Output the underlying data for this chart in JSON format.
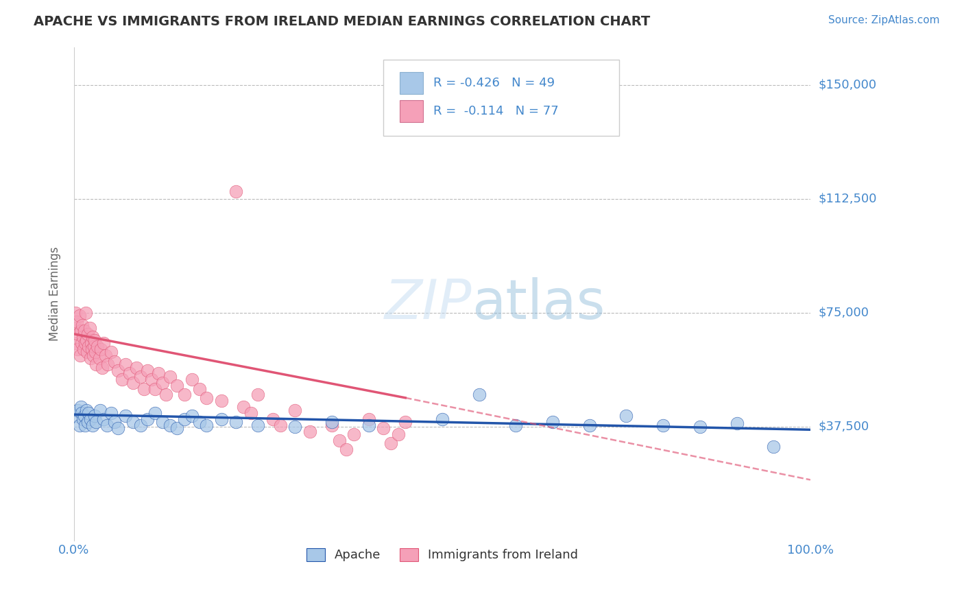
{
  "title": "APACHE VS IMMIGRANTS FROM IRELAND MEDIAN EARNINGS CORRELATION CHART",
  "source": "Source: ZipAtlas.com",
  "ylabel": "Median Earnings",
  "xlim": [
    0.0,
    100.0
  ],
  "ylim": [
    0,
    162500
  ],
  "yticks": [
    37500,
    75000,
    112500,
    150000
  ],
  "ytick_labels": [
    "$37,500",
    "$75,000",
    "$112,500",
    "$150,000"
  ],
  "xtick_labels": [
    "0.0%",
    "100.0%"
  ],
  "background_color": "#ffffff",
  "grid_color": "#bbbbbb",
  "title_color": "#333333",
  "axis_color": "#4488cc",
  "apache_color": "#a8c8e8",
  "apache_line_color": "#2255aa",
  "ireland_color": "#f5a0b8",
  "ireland_line_color": "#e05575",
  "apache_R": "R = -0.426",
  "apache_N": "N = 49",
  "ireland_R": "R =  -0.114",
  "ireland_N": "N = 77",
  "apache_label": "Apache",
  "ireland_label": "Immigrants from Ireland",
  "apache_x": [
    0.3,
    0.5,
    0.7,
    0.9,
    1.0,
    1.2,
    1.4,
    1.5,
    1.7,
    1.9,
    2.0,
    2.2,
    2.5,
    2.8,
    3.0,
    3.5,
    4.0,
    4.5,
    5.0,
    5.5,
    6.0,
    7.0,
    8.0,
    9.0,
    10.0,
    11.0,
    12.0,
    13.0,
    14.0,
    15.0,
    16.0,
    17.0,
    18.0,
    20.0,
    22.0,
    25.0,
    30.0,
    35.0,
    40.0,
    50.0,
    55.0,
    60.0,
    65.0,
    70.0,
    75.0,
    80.0,
    85.0,
    90.0,
    95.0
  ],
  "apache_y": [
    41000,
    43000,
    38000,
    44000,
    42000,
    40000,
    41000,
    38000,
    43000,
    39000,
    42000,
    40000,
    38000,
    41000,
    39000,
    43000,
    40000,
    38000,
    42000,
    39000,
    37000,
    41000,
    39000,
    38000,
    40000,
    42000,
    39000,
    38000,
    37000,
    40000,
    41000,
    39000,
    38000,
    40000,
    39000,
    38000,
    37500,
    39000,
    38000,
    40000,
    48000,
    38000,
    39000,
    38000,
    41000,
    38000,
    37500,
    38500,
    31000
  ],
  "ireland_x": [
    0.1,
    0.2,
    0.3,
    0.4,
    0.5,
    0.6,
    0.7,
    0.8,
    0.9,
    1.0,
    1.1,
    1.2,
    1.3,
    1.4,
    1.5,
    1.6,
    1.7,
    1.8,
    1.9,
    2.0,
    2.1,
    2.2,
    2.3,
    2.4,
    2.5,
    2.6,
    2.7,
    2.8,
    2.9,
    3.0,
    3.2,
    3.4,
    3.6,
    3.8,
    4.0,
    4.3,
    4.6,
    5.0,
    5.5,
    6.0,
    6.5,
    7.0,
    7.5,
    8.0,
    8.5,
    9.0,
    9.5,
    10.0,
    10.5,
    11.0,
    11.5,
    12.0,
    12.5,
    13.0,
    14.0,
    15.0,
    16.0,
    17.0,
    18.0,
    20.0,
    22.0,
    23.0,
    24.0,
    25.0,
    27.0,
    28.0,
    30.0,
    32.0,
    35.0,
    36.0,
    37.0,
    38.0,
    40.0,
    42.0,
    43.0,
    44.0,
    45.0
  ],
  "ireland_y": [
    65000,
    75000,
    70000,
    72000,
    63000,
    68000,
    74000,
    61000,
    69000,
    65000,
    71000,
    67000,
    63000,
    69000,
    65000,
    75000,
    66000,
    62000,
    68000,
    64000,
    70000,
    60000,
    65000,
    63000,
    67000,
    61000,
    64000,
    66000,
    62000,
    58000,
    64000,
    60000,
    63000,
    57000,
    65000,
    61000,
    58000,
    62000,
    59000,
    56000,
    53000,
    58000,
    55000,
    52000,
    57000,
    54000,
    50000,
    56000,
    53000,
    50000,
    55000,
    52000,
    48000,
    54000,
    51000,
    48000,
    53000,
    50000,
    47000,
    46000,
    115000,
    44000,
    42000,
    48000,
    40000,
    38000,
    43000,
    36000,
    38000,
    33000,
    30000,
    35000,
    40000,
    37000,
    32000,
    35000,
    39000
  ],
  "ireland_line_xmax": 45.0,
  "apache_line_y0": 41500,
  "apache_line_y100": 36500,
  "ireland_line_y0": 68000,
  "ireland_line_y45": 47000,
  "ireland_line_y100": 20000
}
